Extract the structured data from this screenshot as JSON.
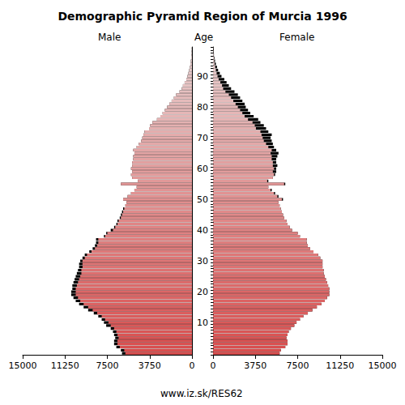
{
  "chart_data": {
    "type": "bar",
    "orientation": "horizontal",
    "title": "Demographic Pyramid Region of Murcia 1996",
    "ylabel": "Age",
    "annotations": [
      "www.iz.sk/RES62"
    ],
    "grid": false,
    "categories": [
      null,
      null,
      null,
      null,
      null,
      null,
      null,
      null,
      null,
      null,
      "10",
      null,
      null,
      null,
      null,
      null,
      null,
      null,
      null,
      null,
      "20",
      null,
      null,
      null,
      null,
      null,
      null,
      null,
      null,
      null,
      "30",
      null,
      null,
      null,
      null,
      null,
      null,
      null,
      null,
      null,
      "40",
      null,
      null,
      null,
      null,
      null,
      null,
      null,
      null,
      null,
      "50",
      null,
      null,
      null,
      null,
      null,
      null,
      null,
      null,
      null,
      "60",
      null,
      null,
      null,
      null,
      null,
      null,
      null,
      null,
      null,
      "70",
      null,
      null,
      null,
      null,
      null,
      null,
      null,
      null,
      null,
      "80",
      null,
      null,
      null,
      null,
      null,
      null,
      null,
      null,
      null,
      "90",
      null,
      null,
      null,
      null,
      null,
      null,
      null,
      null,
      null
    ],
    "xlim": [
      0,
      15000
    ],
    "xticks": [
      0,
      3750,
      7500,
      11250,
      15000
    ],
    "series": [
      {
        "name": "Male",
        "color": "#d94c4c",
        "values": [
          6200,
          6300,
          6700,
          6900,
          6900,
          6800,
          6900,
          7000,
          7200,
          7600,
          7800,
          8000,
          8300,
          8700,
          9200,
          9600,
          10000,
          10300,
          10500,
          10700,
          10700,
          10600,
          10600,
          10500,
          10400,
          10300,
          10200,
          10100,
          10000,
          10000,
          9900,
          9700,
          9500,
          9100,
          8800,
          8600,
          8500,
          8500,
          7800,
          7600,
          7200,
          6900,
          6700,
          6600,
          6400,
          6300,
          6200,
          6100,
          5900,
          5800,
          6100,
          5700,
          5400,
          5100,
          4900,
          6300,
          4800,
          5300,
          5400,
          5300,
          5400,
          5300,
          5300,
          5200,
          5200,
          5100,
          5200,
          4900,
          4700,
          4500,
          4400,
          4300,
          4200,
          3800,
          3700,
          3500,
          3100,
          2800,
          2600,
          2400,
          2200,
          2000,
          1800,
          1600,
          1400,
          1100,
          900,
          800,
          650,
          500,
          400,
          320,
          250,
          190,
          140,
          100,
          70,
          50,
          30,
          20
        ]
      },
      {
        "name": "Female",
        "color": "#d94c4c",
        "values": [
          5900,
          6000,
          6400,
          6600,
          6600,
          6500,
          6600,
          6700,
          6900,
          7200,
          7400,
          7700,
          8000,
          8400,
          8800,
          9200,
          9600,
          9900,
          10100,
          10300,
          10300,
          10300,
          10200,
          10100,
          10000,
          9900,
          9800,
          9800,
          9700,
          9700,
          9700,
          9500,
          9300,
          8900,
          8600,
          8400,
          8300,
          8300,
          7700,
          7500,
          7000,
          6800,
          6600,
          6500,
          6300,
          6200,
          6100,
          6000,
          5900,
          5800,
          6200,
          5800,
          5500,
          5200,
          4900,
          6400,
          4900,
          5300,
          5500,
          5600,
          5600,
          5700,
          5600,
          5600,
          5700,
          5800,
          5600,
          5400,
          5300,
          5200,
          5100,
          5200,
          4900,
          4700,
          4500,
          4200,
          4000,
          3600,
          3300,
          3100,
          2900,
          2800,
          2600,
          2400,
          2200,
          1900,
          1600,
          1400,
          1200,
          1000,
          750,
          600,
          450,
          350,
          250,
          180,
          120,
          80,
          50,
          30
        ]
      }
    ]
  }
}
